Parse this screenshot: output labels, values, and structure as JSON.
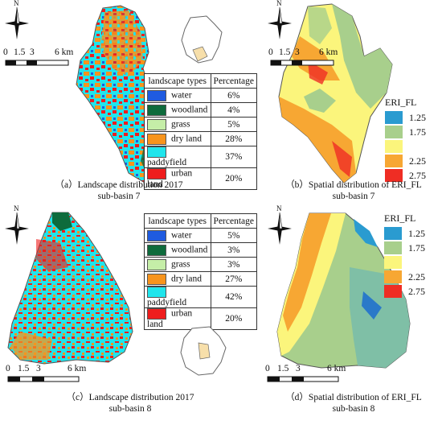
{
  "panels": {
    "a": {
      "caption_line1": "（a）Landscape distribution 2017",
      "caption_line2": "sub-basin 7"
    },
    "b": {
      "caption_line1": "（b）Spatial distribution of ERI_FL",
      "caption_line2": "sub-basin 7"
    },
    "c": {
      "caption_line1": "（c）Landscape distribution 2017",
      "caption_line2": "sub-basin 8"
    },
    "d": {
      "caption_line1": "（d）Spatial distribution of ERI_FL",
      "caption_line2": "sub-basin 8"
    }
  },
  "north_label": "N",
  "scale_bar": {
    "ticks": [
      "0",
      "1.5",
      "3",
      "6 km"
    ]
  },
  "landscape_table_headers": {
    "type": "landscape types",
    "pct": "Percentage"
  },
  "landscape_table_7": [
    {
      "type": "water",
      "pct": "6%",
      "color": "#1f5be0"
    },
    {
      "type": "woodland",
      "pct": "4%",
      "color": "#0e6b3c"
    },
    {
      "type": "grass",
      "pct": "5%",
      "color": "#c5eea8"
    },
    {
      "type": "dry land",
      "pct": "28%",
      "color": "#f7941d"
    },
    {
      "type": "paddyfield",
      "pct": "37%",
      "color": "#20e5ec"
    },
    {
      "type": "urban land",
      "pct": "20%",
      "color": "#ef1d1d"
    }
  ],
  "landscape_table_8": [
    {
      "type": "water",
      "pct": "5%",
      "color": "#1f5be0"
    },
    {
      "type": "woodland",
      "pct": "3%",
      "color": "#0e6b3c"
    },
    {
      "type": "grass",
      "pct": "3%",
      "color": "#c5eea8"
    },
    {
      "type": "dry land",
      "pct": "27%",
      "color": "#f7941d"
    },
    {
      "type": "paddyfield",
      "pct": "42%",
      "color": "#20e5ec"
    },
    {
      "type": "urban land",
      "pct": "20%",
      "color": "#ef1d1d"
    }
  ],
  "eri_legend": {
    "title": "ERI_FL",
    "classes": [
      {
        "label": "1.25",
        "color": "#2a9bd0"
      },
      {
        "label": "1.75",
        "color": "#a8cf8c"
      },
      {
        "label": "",
        "color": "#fbf57c"
      },
      {
        "label": "2.25",
        "color": "#f7a733"
      },
      {
        "label": "2.75",
        "color": "#ef2d24"
      }
    ]
  }
}
